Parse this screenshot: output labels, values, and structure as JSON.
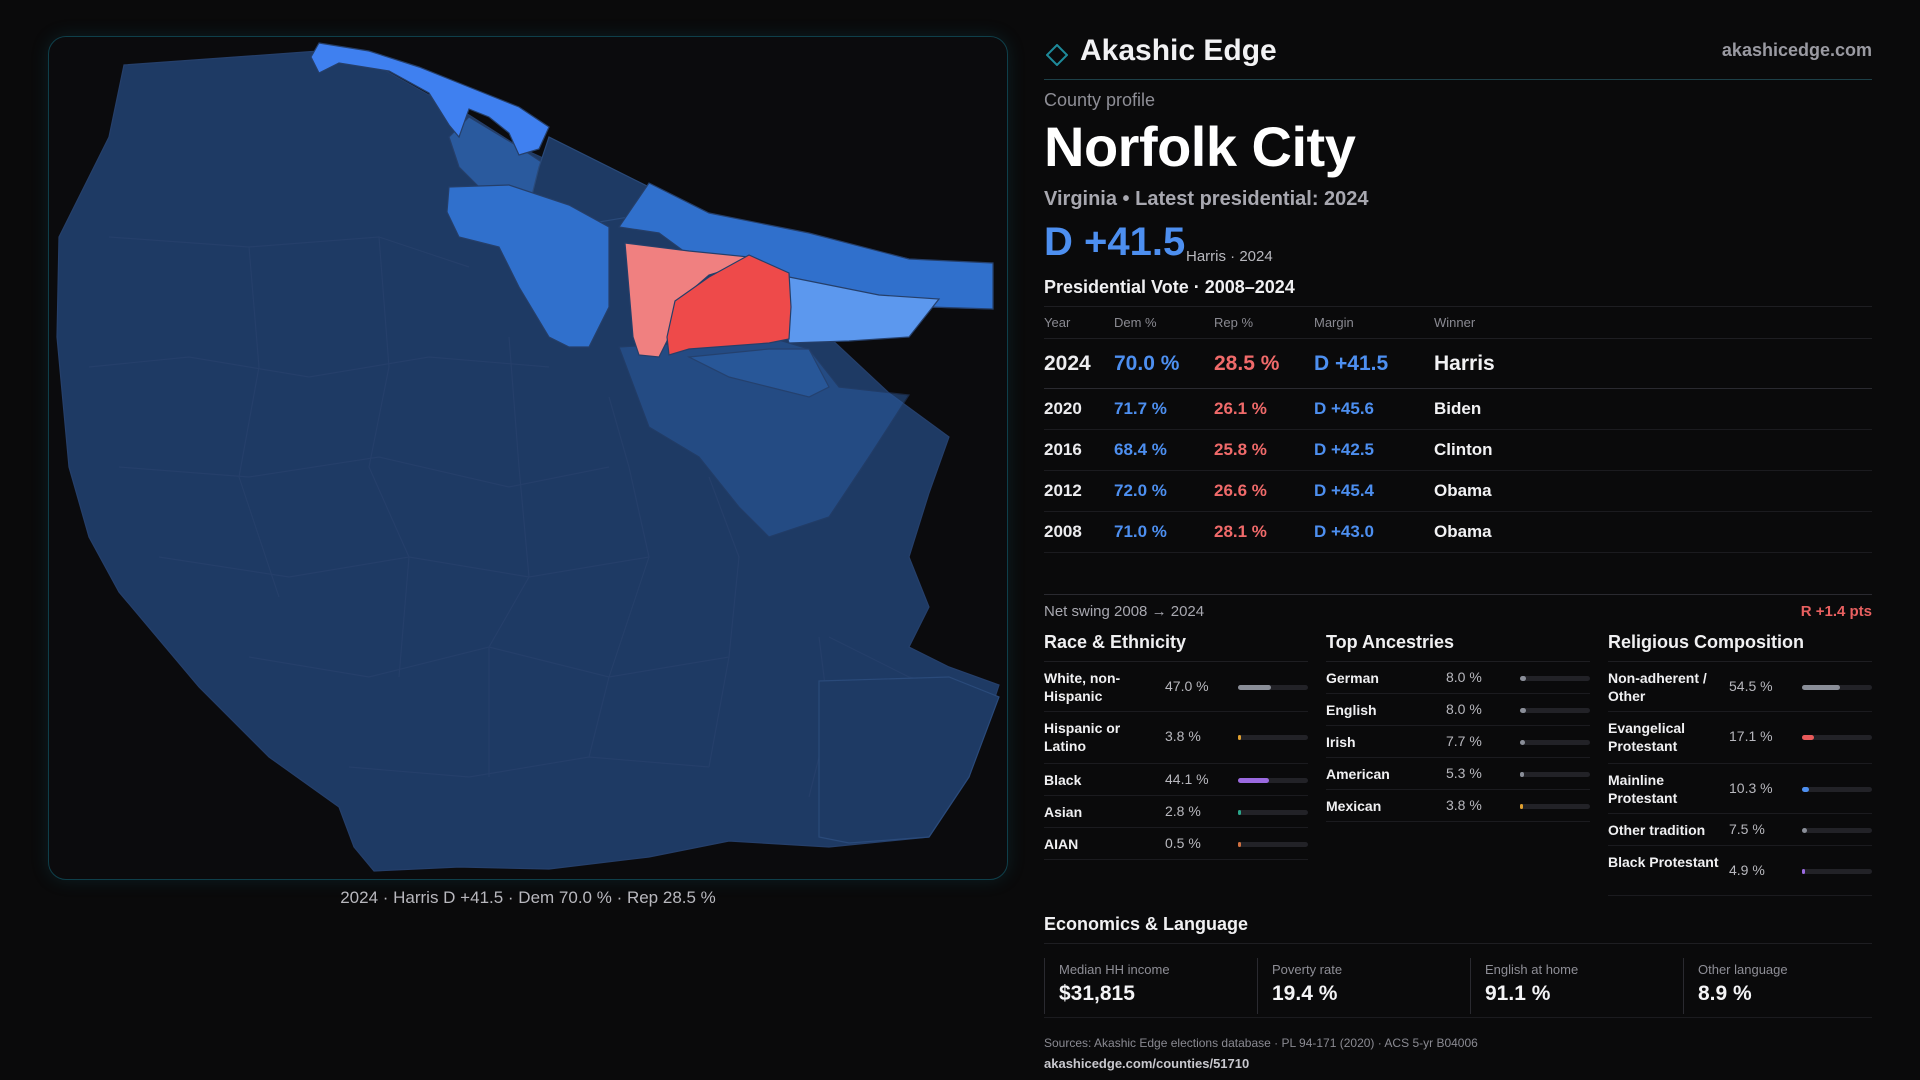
{
  "brand": {
    "name": "Akashic Edge",
    "url": "akashicedge.com",
    "accent": "#1e8a9a"
  },
  "county": {
    "kicker": "County profile",
    "name": "Norfolk City",
    "subtitle": "Virginia • Latest presidential: 2024",
    "headline_margin": "D +41.5",
    "headline_sub": "Harris · 2024"
  },
  "vote": {
    "title": "Presidential Vote · 2008–2024",
    "headers": [
      "Year",
      "Dem %",
      "Rep %",
      "Margin",
      "Winner"
    ],
    "rows": [
      {
        "year": "2024",
        "dem": "70.0 %",
        "rep": "28.5 %",
        "margin": "D +41.5",
        "winner": "Harris"
      },
      {
        "year": "2020",
        "dem": "71.7 %",
        "rep": "26.1 %",
        "margin": "D +45.6",
        "winner": "Biden"
      },
      {
        "year": "2016",
        "dem": "68.4 %",
        "rep": "25.8 %",
        "margin": "D +42.5",
        "winner": "Clinton"
      },
      {
        "year": "2012",
        "dem": "72.0 %",
        "rep": "26.6 %",
        "margin": "D +45.4",
        "winner": "Obama"
      },
      {
        "year": "2008",
        "dem": "71.0 %",
        "rep": "28.1 %",
        "margin": "D +43.0",
        "winner": "Obama"
      }
    ],
    "swing_label": "Net swing 2008 → 2024",
    "swing_value": "R +1.4 pts"
  },
  "race": {
    "title": "Race & Ethnicity",
    "items": [
      {
        "label": "White, non-Hispanic",
        "value": "47.0 %",
        "pct": 47.0,
        "color": "#8a8e98"
      },
      {
        "label": "Hispanic or Latino",
        "value": "3.8 %",
        "pct": 3.8,
        "color": "#e0a030"
      },
      {
        "label": "Black",
        "value": "44.1 %",
        "pct": 44.1,
        "color": "#9b6ae0"
      },
      {
        "label": "Asian",
        "value": "2.8 %",
        "pct": 2.8,
        "color": "#2aa58a"
      },
      {
        "label": "AIAN",
        "value": "0.5 %",
        "pct": 0.5,
        "color": "#d07040"
      }
    ]
  },
  "ancestry": {
    "title": "Top Ancestries",
    "items": [
      {
        "label": "German",
        "value": "8.0 %",
        "pct": 8.0,
        "color": "#8a8e98"
      },
      {
        "label": "English",
        "value": "8.0 %",
        "pct": 8.0,
        "color": "#8a8e98"
      },
      {
        "label": "Irish",
        "value": "7.7 %",
        "pct": 7.7,
        "color": "#8a8e98"
      },
      {
        "label": "American",
        "value": "5.3 %",
        "pct": 5.3,
        "color": "#8a8e98"
      },
      {
        "label": "Mexican",
        "value": "3.8 %",
        "pct": 3.8,
        "color": "#e0a030"
      }
    ]
  },
  "religion": {
    "title": "Religious Composition",
    "items": [
      {
        "label": "Non-adherent / Other",
        "value": "54.5 %",
        "pct": 54.5,
        "color": "#8a8e98"
      },
      {
        "label": "Evangelical Protestant",
        "value": "17.1 %",
        "pct": 17.1,
        "color": "#e85a5a"
      },
      {
        "label": "Mainline Protestant",
        "value": "10.3 %",
        "pct": 10.3,
        "color": "#4d8ff0"
      },
      {
        "label": "Other tradition",
        "value": "7.5 %",
        "pct": 7.5,
        "color": "#8a8e98"
      },
      {
        "label": "Black Protestant",
        "value": "4.9 %",
        "pct": 4.9,
        "color": "#9b6ae0"
      }
    ]
  },
  "economics": {
    "title": "Economics & Language",
    "cards": [
      {
        "label": "Median HH income",
        "value": "$31,815"
      },
      {
        "label": "Poverty rate",
        "value": "19.4 %"
      },
      {
        "label": "English at home",
        "value": "91.1 %"
      },
      {
        "label": "Other language",
        "value": "8.9 %"
      }
    ]
  },
  "sources": {
    "text": "Sources: Akashic Edge elections database · PL 94-171 (2020) · ACS 5-yr B04006",
    "url": "akashicedge.com/counties/51710"
  },
  "map": {
    "caption": "2024 · Harris D +41.5 · Dem 70.0 % · Rep 28.5 %",
    "colors": {
      "base": "#1e3a64",
      "lean_d": "#2a5a9e",
      "likely_d": "#3070cc",
      "safe_d": "#3f80f0",
      "light_d": "#5c98ee",
      "lean_r": "#f08080",
      "likely_r": "#ee4a4a",
      "border": "#253f6a"
    }
  }
}
